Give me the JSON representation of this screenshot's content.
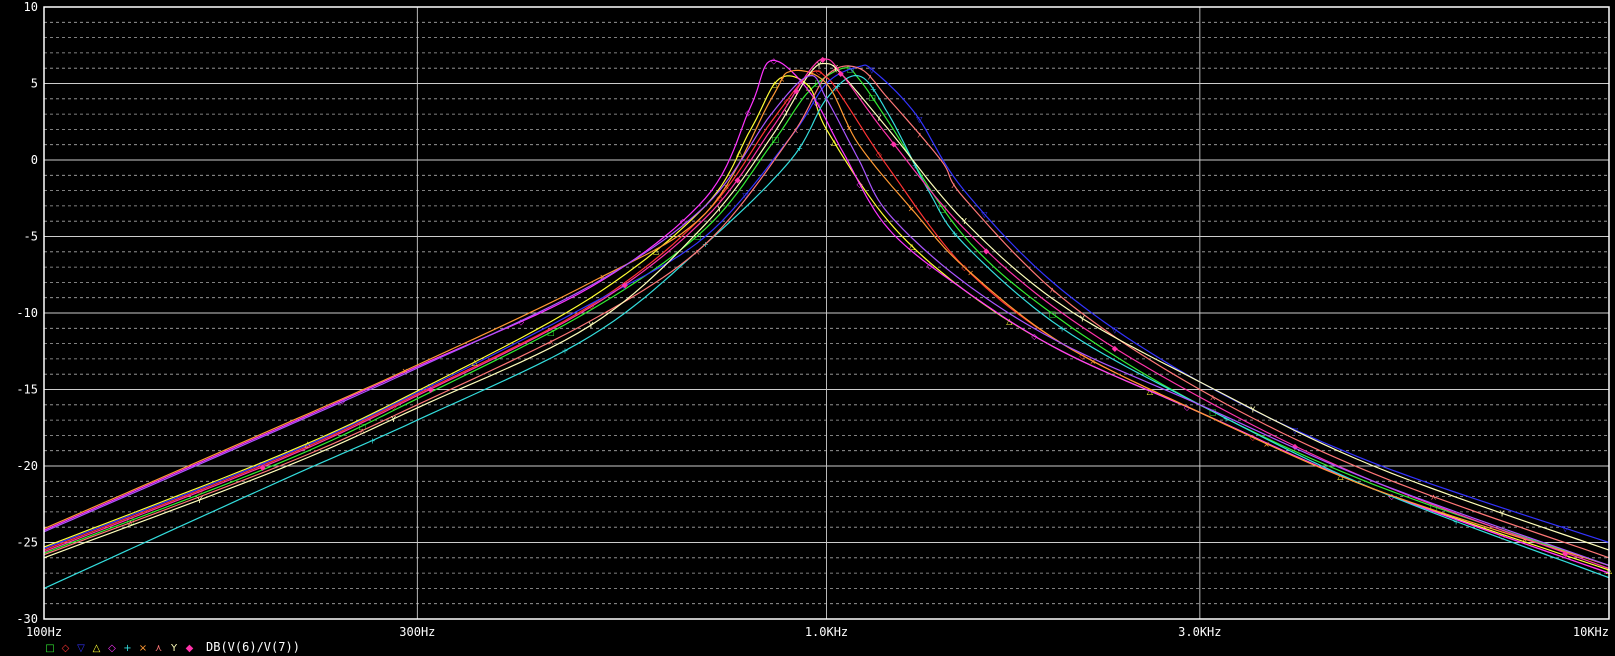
{
  "chart_data": {
    "type": "line",
    "xscale": "log",
    "xlim": [
      100,
      10000
    ],
    "ylim": [
      -30,
      10
    ],
    "grid": true,
    "background": "#000000",
    "x_ticks": [
      {
        "value": 100,
        "label": "100Hz"
      },
      {
        "value": 300,
        "label": "300Hz"
      },
      {
        "value": 1000,
        "label": "1.0KHz"
      },
      {
        "value": 3000,
        "label": "3.0KHz"
      },
      {
        "value": 10000,
        "label": "10KHz"
      }
    ],
    "y_ticks": [
      {
        "value": 10,
        "label": "10"
      },
      {
        "value": 5,
        "label": "5"
      },
      {
        "value": 0,
        "label": "0"
      },
      {
        "value": -5,
        "label": "-5"
      },
      {
        "value": -10,
        "label": "-10"
      },
      {
        "value": -15,
        "label": "-15"
      },
      {
        "value": -20,
        "label": "-20"
      },
      {
        "value": -25,
        "label": "-25"
      },
      {
        "value": -30,
        "label": "-30"
      }
    ],
    "legend_expression": "DB(V(6)/V(7))",
    "legend_position": "bottom-left",
    "series": [
      {
        "marker": "□",
        "color": "#33ee33",
        "x": [
          100,
          200,
          300,
          500,
          700,
          850,
          950,
          1050,
          1100,
          1200,
          1500,
          2000,
          3000,
          5000,
          10000
        ],
        "y": [
          -25.7,
          -19.8,
          -15.6,
          -9.8,
          -4.5,
          1.0,
          4.5,
          6.0,
          5.3,
          2.5,
          -5.0,
          -10.5,
          -16.0,
          -21.2,
          -26.5
        ]
      },
      {
        "marker": "◇",
        "color": "#ff3333",
        "x": [
          100,
          200,
          300,
          500,
          700,
          850,
          950,
          1000,
          1050,
          1200,
          1500,
          2000,
          3000,
          5000,
          10000
        ],
        "y": [
          -25.5,
          -19.5,
          -15.3,
          -9.5,
          -3.5,
          2.5,
          5.6,
          5.4,
          4.0,
          -0.5,
          -7.0,
          -12.0,
          -16.5,
          -21.5,
          -27.0
        ]
      },
      {
        "marker": "▽",
        "color": "#3333ff",
        "x": [
          100,
          200,
          300,
          500,
          700,
          900,
          1000,
          1100,
          1150,
          1300,
          1500,
          2000,
          3000,
          5000,
          10000
        ],
        "y": [
          -25.4,
          -19.4,
          -15.2,
          -9.4,
          -5.0,
          1.5,
          5.0,
          6.1,
          5.8,
          3.0,
          -2.0,
          -8.5,
          -14.5,
          -19.8,
          -25.0
        ]
      },
      {
        "marker": "△",
        "color": "#ffff33",
        "x": [
          100,
          200,
          300,
          500,
          700,
          800,
          870,
          950,
          1000,
          1200,
          1500,
          2000,
          3000,
          5000,
          10000
        ],
        "y": [
          -25.3,
          -19.3,
          -15.1,
          -9.0,
          -3.0,
          2.0,
          5.3,
          4.8,
          2.0,
          -4.0,
          -8.5,
          -12.5,
          -16.5,
          -21.5,
          -26.8
        ]
      },
      {
        "marker": "◇",
        "color": "#ff33ff",
        "x": [
          100,
          200,
          300,
          500,
          700,
          800,
          850,
          950,
          1050,
          1200,
          1500,
          2000,
          3000,
          5000,
          10000
        ],
        "y": [
          -24.2,
          -17.5,
          -13.5,
          -8.3,
          -2.5,
          3.5,
          6.5,
          4.5,
          0.5,
          -4.5,
          -8.5,
          -12.5,
          -16.5,
          -21.5,
          -27.0
        ]
      },
      {
        "marker": "+",
        "color": "#33dddd",
        "x": [
          100,
          200,
          300,
          500,
          700,
          900,
          1000,
          1100,
          1200,
          1350,
          1500,
          2000,
          3000,
          5000,
          10000
        ],
        "y": [
          -28.0,
          -21.0,
          -17.0,
          -11.5,
          -5.5,
          0.0,
          4.0,
          5.5,
          3.0,
          -2.0,
          -5.5,
          -11.0,
          -16.0,
          -21.5,
          -27.3
        ]
      },
      {
        "marker": "×",
        "color": "#ff9933",
        "x": [
          100,
          200,
          300,
          500,
          700,
          850,
          900,
          1000,
          1100,
          1300,
          1500,
          2000,
          3000,
          5000,
          10000
        ],
        "y": [
          -24.1,
          -17.4,
          -13.4,
          -8.0,
          -3.5,
          4.0,
          5.8,
          5.0,
          1.0,
          -3.5,
          -7.0,
          -12.0,
          -16.5,
          -21.5,
          -26.5
        ]
      },
      {
        "marker": "⋏",
        "color": "#ff7777",
        "x": [
          100,
          200,
          300,
          500,
          700,
          900,
          1000,
          1100,
          1200,
          1400,
          1500,
          2000,
          3000,
          5000,
          10000
        ],
        "y": [
          -25.8,
          -20.0,
          -16.0,
          -10.5,
          -5.5,
          1.5,
          5.5,
          6.0,
          4.0,
          0.0,
          -2.5,
          -9.0,
          -15.0,
          -20.5,
          -26.0
        ]
      },
      {
        "marker": "Y",
        "color": "#ffffbb",
        "x": [
          100,
          200,
          300,
          500,
          700,
          850,
          950,
          1000,
          1050,
          1200,
          1500,
          2000,
          3000,
          5000,
          10000
        ],
        "y": [
          -26.0,
          -20.2,
          -16.2,
          -10.8,
          -4.2,
          1.5,
          5.6,
          6.3,
          5.5,
          2.0,
          -4.0,
          -9.5,
          -14.5,
          -20.0,
          -25.5
        ]
      },
      {
        "marker": "◆",
        "color": "#ff33aa",
        "x": [
          100,
          200,
          300,
          500,
          700,
          850,
          950,
          1000,
          1050,
          1200,
          1500,
          2000,
          3000,
          5000,
          10000
        ],
        "y": [
          -25.6,
          -19.6,
          -15.4,
          -9.6,
          -3.8,
          2.0,
          5.8,
          6.6,
          5.5,
          1.5,
          -4.5,
          -10.0,
          -15.5,
          -21.0,
          -26.7
        ]
      },
      {
        "marker": "",
        "color": "#aa55ff",
        "x": [
          100,
          200,
          300,
          500,
          700,
          850,
          950,
          1000,
          1100,
          1200,
          1500,
          2000,
          3000,
          5000,
          10000
        ],
        "y": [
          -24.3,
          -17.6,
          -13.6,
          -8.2,
          -3.0,
          3.0,
          5.5,
          4.0,
          0.0,
          -3.5,
          -8.0,
          -12.0,
          -16.0,
          -21.0,
          -26.5
        ]
      }
    ]
  }
}
